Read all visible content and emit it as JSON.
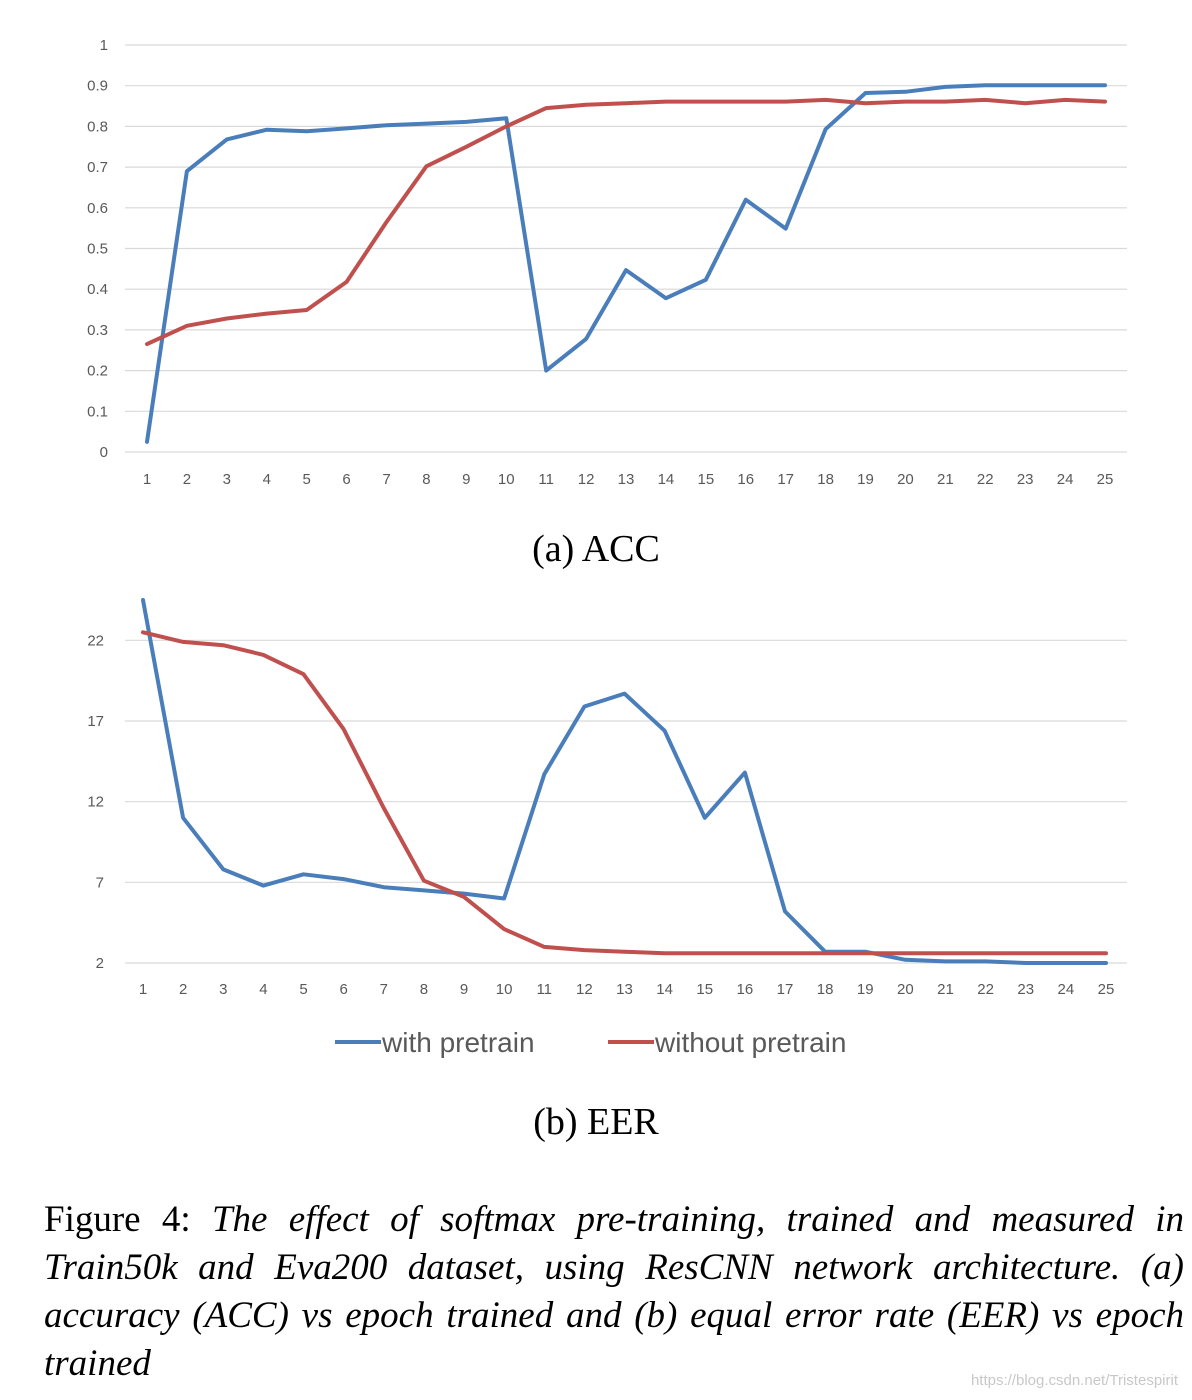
{
  "chart_data": [
    {
      "type": "line",
      "title": "",
      "subcaption": "(a) ACC",
      "xlabel": "",
      "ylabel": "",
      "categories": [
        "1",
        "2",
        "3",
        "4",
        "5",
        "6",
        "7",
        "8",
        "9",
        "10",
        "11",
        "12",
        "13",
        "14",
        "15",
        "16",
        "17",
        "18",
        "19",
        "20",
        "21",
        "22",
        "23",
        "24",
        "25"
      ],
      "yticks": [
        "0",
        "0.1",
        "0.2",
        "0.3",
        "0.4",
        "0.5",
        "0.6",
        "0.7",
        "0.8",
        "0.9",
        "1"
      ],
      "ylim": [
        0,
        1
      ],
      "grid": true,
      "series": [
        {
          "name": "with pretrain",
          "color": "#4a7ebb",
          "values": [
            0.025,
            0.69,
            0.768,
            0.792,
            0.788,
            0.795,
            0.803,
            0.807,
            0.811,
            0.82,
            0.2,
            0.278,
            0.447,
            0.378,
            0.423,
            0.62,
            0.549,
            0.793,
            0.882,
            0.885,
            0.897,
            0.901,
            0.901,
            0.901,
            0.901
          ]
        },
        {
          "name": "without pretrain",
          "color": "#c0504d",
          "values": [
            0.265,
            0.31,
            0.328,
            0.34,
            0.349,
            0.418,
            0.565,
            0.702,
            0.75,
            0.8,
            0.845,
            0.853,
            0.857,
            0.861,
            0.861,
            0.861,
            0.861,
            0.865,
            0.857,
            0.861,
            0.861,
            0.865,
            0.857,
            0.865,
            0.861
          ]
        }
      ]
    },
    {
      "type": "line",
      "title": "",
      "subcaption": "(b) EER",
      "xlabel": "",
      "ylabel": "",
      "categories": [
        "1",
        "2",
        "3",
        "4",
        "5",
        "6",
        "7",
        "8",
        "9",
        "10",
        "11",
        "12",
        "13",
        "14",
        "15",
        "16",
        "17",
        "18",
        "19",
        "20",
        "21",
        "22",
        "23",
        "24",
        "25"
      ],
      "yticks": [
        "2",
        "7",
        "12",
        "17",
        "22"
      ],
      "ylim": [
        2,
        24.5
      ],
      "grid": true,
      "legend": {
        "position": "bottom",
        "entries": [
          "with pretrain",
          "without pretrain"
        ]
      },
      "series": [
        {
          "name": "with pretrain",
          "color": "#4a7ebb",
          "values": [
            24.5,
            11.0,
            7.8,
            6.8,
            7.5,
            7.2,
            6.7,
            6.5,
            6.3,
            6.0,
            13.7,
            17.9,
            18.7,
            16.4,
            11.0,
            13.8,
            5.2,
            2.7,
            2.7,
            2.2,
            2.1,
            2.1,
            2.0,
            2.0,
            2.0
          ]
        },
        {
          "name": "without pretrain",
          "color": "#c0504d",
          "values": [
            22.5,
            21.9,
            21.7,
            21.1,
            19.9,
            16.5,
            11.6,
            7.1,
            6.1,
            4.1,
            3.0,
            2.8,
            2.7,
            2.6,
            2.6,
            2.6,
            2.6,
            2.6,
            2.6,
            2.6,
            2.6,
            2.6,
            2.6,
            2.6,
            2.6
          ]
        }
      ]
    }
  ],
  "caption": {
    "label": "Figure 4:",
    "text": "The effect of softmax pre-training, trained and measured in Train50k and Eva200 dataset, using ResCNN network architecture. (a) accuracy (ACC) vs epoch trained and (b) equal error rate (EER) vs epoch trained"
  },
  "watermark": "https://blog.csdn.net/Tristespirit"
}
